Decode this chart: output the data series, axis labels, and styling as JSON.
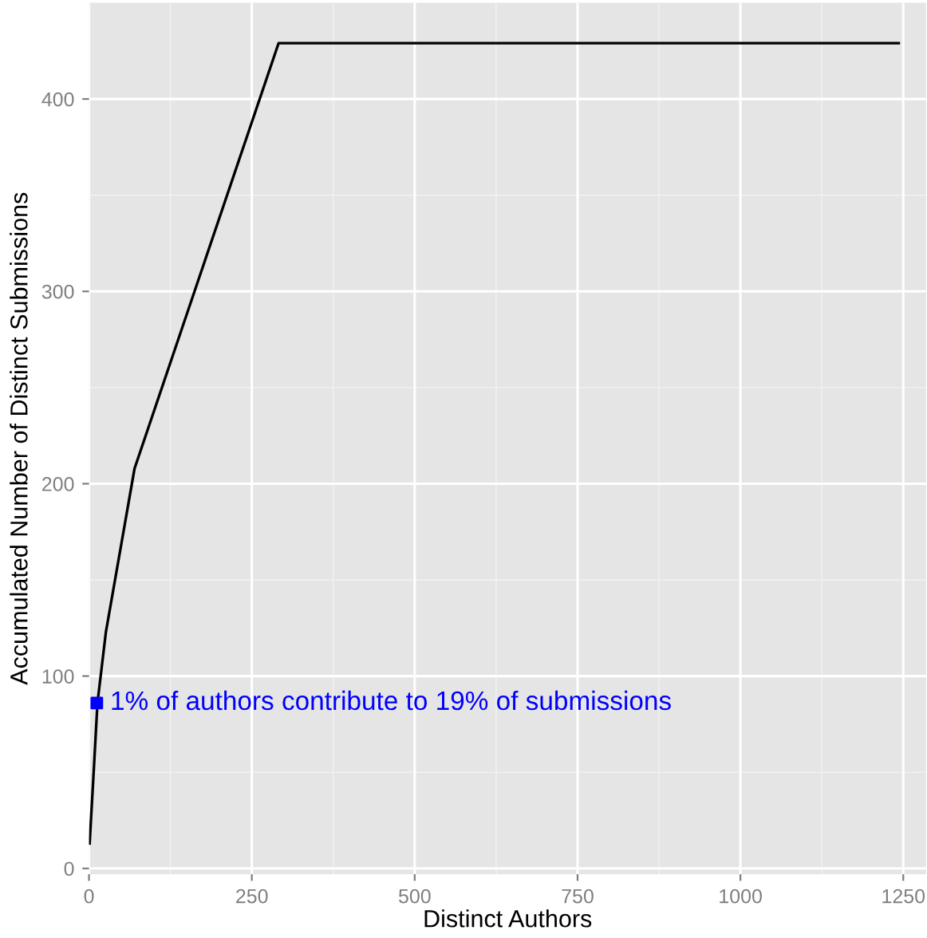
{
  "chart_data": {
    "type": "line",
    "xlabel": "Distinct Authors",
    "ylabel": "Accumulated Number of Distinct Submissions",
    "series": [
      {
        "color": "#000000",
        "x": [
          1,
          8,
          13,
          26,
          70,
          291,
          1243
        ],
        "values": [
          13,
          55,
          86,
          123,
          208,
          429,
          429
        ]
      },
      {
        "type": "scatter",
        "color": "#0000ff",
        "marker": "square",
        "x": [
          12
        ],
        "values": [
          86
        ]
      }
    ],
    "annotations": [
      {
        "text": "1% of authors contribute to 19% of submissions",
        "x": 12,
        "y": 86
      }
    ],
    "xlim": [
      0,
      1285
    ],
    "ylim": [
      -3,
      450
    ],
    "xticks": [
      0,
      250,
      500,
      750,
      1000,
      1250
    ],
    "yticks": [
      0,
      100,
      200,
      300,
      400
    ],
    "grid": true
  }
}
